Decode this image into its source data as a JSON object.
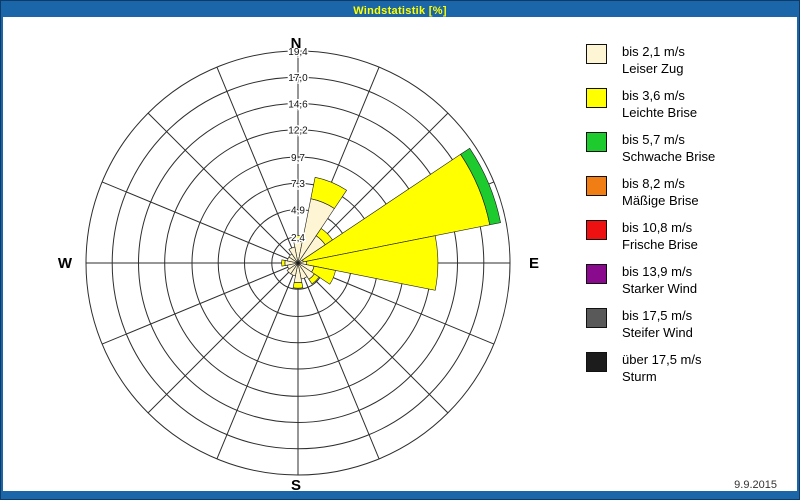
{
  "window": {
    "title": "Windstatistik [%]",
    "title_color": "#FFFF00",
    "frame_color": "#1B66A8",
    "date": "9.9.2015"
  },
  "compass": {
    "north": "N",
    "east": "E",
    "south": "S",
    "west": "W"
  },
  "legend": {
    "items": [
      {
        "speed": "bis 2,1 m/s",
        "name": "Leiser Zug",
        "color": "#FDF5D3"
      },
      {
        "speed": "bis 3,6 m/s",
        "name": "Leichte Brise",
        "color": "#FFFF00"
      },
      {
        "speed": "bis 5,7 m/s",
        "name": "Schwache Brise",
        "color": "#1ECB2E"
      },
      {
        "speed": "bis 8,2 m/s",
        "name": "Mäßige Brise",
        "color": "#F07E14"
      },
      {
        "speed": "bis 10,8 m/s",
        "name": "Frische Brise",
        "color": "#EE1111"
      },
      {
        "speed": "bis 13,9 m/s",
        "name": "Starker Wind",
        "color": "#8A0A8E"
      },
      {
        "speed": "bis 17,5 m/s",
        "name": "Steifer Wind",
        "color": "#595959"
      },
      {
        "speed": "über 17,5 m/s",
        "name": "Sturm",
        "color": "#1C1C1C"
      }
    ]
  },
  "chart_data": {
    "type": "windrose",
    "title": "Windstatistik [%]",
    "unit": "%",
    "max": 19.4,
    "rings": [
      2.4,
      4.9,
      7.3,
      9.7,
      12.2,
      14.6,
      17.0,
      19.4
    ],
    "ring_labels": [
      "2,4",
      "4,9",
      "7,3",
      "9,7",
      "12,2",
      "14,6",
      "17,0",
      "19,4"
    ],
    "directions": [
      "N",
      "NNE",
      "NE",
      "ENE",
      "E",
      "ESE",
      "SE",
      "SSE",
      "S",
      "SSW",
      "SW",
      "WSW",
      "W",
      "WNW",
      "NW",
      "NNW"
    ],
    "series": [
      {
        "name": "bis 2,1 m/s",
        "color": "#FDF5D3",
        "values": [
          2.0,
          6.0,
          3.0,
          0.5,
          0.8,
          1.5,
          1.8,
          1.5,
          1.8,
          1.2,
          1.2,
          1.0,
          1.2,
          1.0,
          1.0,
          1.5
        ]
      },
      {
        "name": "bis 3,6 m/s",
        "color": "#FFFF00",
        "values": [
          0.5,
          2.0,
          0.8,
          17.4,
          12.0,
          2.0,
          0.5,
          0,
          0.5,
          0,
          0,
          0,
          0.3,
          0,
          0,
          0
        ]
      },
      {
        "name": "bis 5,7 m/s",
        "color": "#1ECB2E",
        "values": [
          0,
          0,
          0,
          1.0,
          0,
          0,
          0,
          0,
          0,
          0,
          0,
          0,
          0,
          0,
          0,
          0
        ]
      },
      {
        "name": "bis 8,2 m/s",
        "color": "#F07E14",
        "values": [
          0,
          0,
          0,
          0,
          0,
          0,
          0,
          0,
          0,
          0,
          0,
          0,
          0,
          0,
          0,
          0
        ]
      },
      {
        "name": "bis 10,8 m/s",
        "color": "#EE1111",
        "values": [
          0,
          0,
          0,
          0,
          0,
          0,
          0,
          0,
          0,
          0,
          0,
          0,
          0,
          0,
          0,
          0
        ]
      },
      {
        "name": "bis 13,9 m/s",
        "color": "#8A0A8E",
        "values": [
          0,
          0,
          0,
          0,
          0,
          0,
          0,
          0,
          0,
          0,
          0,
          0,
          0,
          0,
          0,
          0
        ]
      },
      {
        "name": "bis 17,5 m/s",
        "color": "#595959",
        "values": [
          0,
          0,
          0,
          0,
          0,
          0,
          0,
          0,
          0,
          0,
          0,
          0,
          0,
          0,
          0,
          0
        ]
      },
      {
        "name": "über 17,5 m/s",
        "color": "#1C1C1C",
        "values": [
          0,
          0,
          0,
          0,
          0,
          0,
          0,
          0,
          0,
          0,
          0,
          0,
          0,
          0,
          0,
          0
        ]
      }
    ]
  }
}
